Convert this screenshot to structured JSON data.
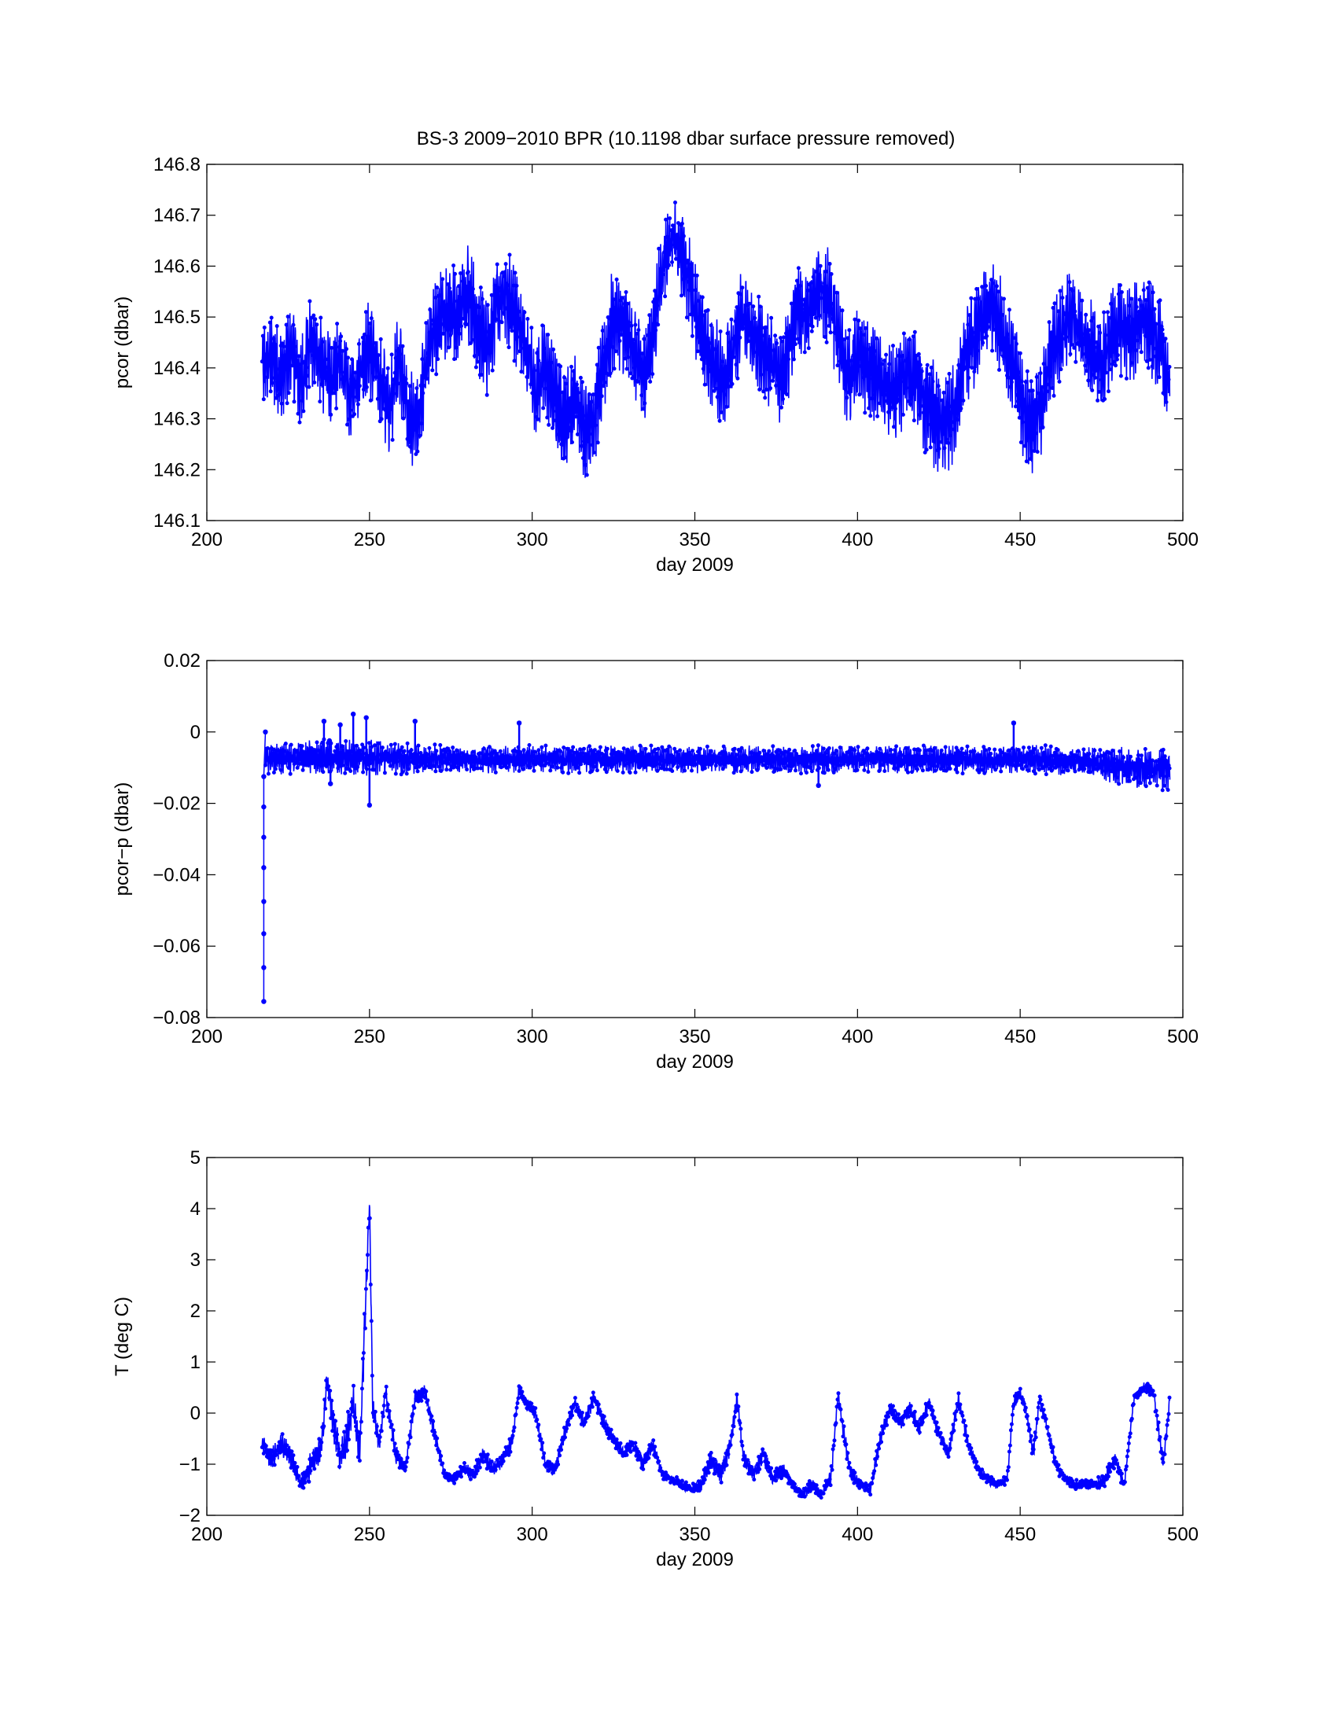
{
  "title": "BS-3 2009−2010 BPR (10.1198 dbar surface pressure removed)",
  "colors": {
    "series": "#0000ff",
    "axes": "#000000",
    "background": "#ffffff"
  },
  "chart_data": [
    {
      "type": "line",
      "xlabel": "day 2009",
      "ylabel": "pcor (dbar)",
      "xlim": [
        200,
        500
      ],
      "ylim": [
        146.1,
        146.8
      ],
      "xticks": [
        "200",
        "250",
        "300",
        "350",
        "400",
        "450",
        "500"
      ],
      "yticks": [
        "146.1",
        "146.2",
        "146.3",
        "146.4",
        "146.5",
        "146.6",
        "146.7",
        "146.8"
      ],
      "grid": false,
      "marker": "dot",
      "series": [
        {
          "x": [
            217,
            220,
            223,
            226,
            229,
            232,
            235,
            238,
            241,
            244,
            247,
            250,
            253,
            256,
            259,
            262,
            265,
            268,
            271,
            274,
            277,
            280,
            283,
            286,
            289,
            292,
            295,
            298,
            301,
            304,
            307,
            310,
            313,
            316,
            319,
            322,
            325,
            328,
            331,
            334,
            337,
            340,
            343,
            346,
            349,
            352,
            355,
            358,
            361,
            364,
            367,
            370,
            373,
            376,
            379,
            382,
            385,
            388,
            391,
            394,
            397,
            400,
            403,
            406,
            409,
            412,
            415,
            418,
            421,
            424,
            427,
            430,
            433,
            436,
            439,
            442,
            445,
            448,
            451,
            454,
            457,
            460,
            463,
            466,
            469,
            472,
            475,
            478,
            481,
            484,
            487,
            490,
            493,
            496
          ],
          "y": [
            146.4,
            146.42,
            146.38,
            146.44,
            146.36,
            146.46,
            146.4,
            146.38,
            146.42,
            146.34,
            146.4,
            146.44,
            146.38,
            146.32,
            146.42,
            146.3,
            146.28,
            146.44,
            146.48,
            146.52,
            146.5,
            146.56,
            146.48,
            146.44,
            146.52,
            146.54,
            146.5,
            146.44,
            146.36,
            146.4,
            146.34,
            146.3,
            146.34,
            146.28,
            146.3,
            146.4,
            146.5,
            146.48,
            146.44,
            146.38,
            146.46,
            146.6,
            146.66,
            146.62,
            146.56,
            146.46,
            146.42,
            146.38,
            146.4,
            146.5,
            146.48,
            146.44,
            146.42,
            146.38,
            146.44,
            146.52,
            146.5,
            146.56,
            146.54,
            146.46,
            146.38,
            146.42,
            146.4,
            146.38,
            146.36,
            146.34,
            146.4,
            146.38,
            146.32,
            146.3,
            146.28,
            146.32,
            146.42,
            146.46,
            146.5,
            146.52,
            146.46,
            146.4,
            146.32,
            146.28,
            146.34,
            146.44,
            146.48,
            146.5,
            146.46,
            146.44,
            146.4,
            146.46,
            146.48,
            146.46,
            146.5,
            146.48,
            146.44,
            146.36
          ],
          "band": [
            0.09,
            0.09,
            0.1,
            0.1,
            0.11,
            0.1,
            0.1,
            0.1,
            0.1,
            0.09,
            0.1,
            0.1,
            0.1,
            0.1,
            0.1,
            0.1,
            0.12,
            0.1,
            0.1,
            0.1,
            0.1,
            0.11,
            0.11,
            0.1,
            0.1,
            0.1,
            0.1,
            0.1,
            0.1,
            0.1,
            0.1,
            0.1,
            0.1,
            0.1,
            0.1,
            0.1,
            0.11,
            0.1,
            0.1,
            0.1,
            0.1,
            0.09,
            0.08,
            0.09,
            0.1,
            0.1,
            0.1,
            0.1,
            0.1,
            0.1,
            0.1,
            0.1,
            0.1,
            0.1,
            0.1,
            0.11,
            0.1,
            0.1,
            0.11,
            0.1,
            0.1,
            0.1,
            0.1,
            0.1,
            0.1,
            0.1,
            0.1,
            0.1,
            0.11,
            0.12,
            0.12,
            0.1,
            0.1,
            0.1,
            0.1,
            0.11,
            0.1,
            0.1,
            0.11,
            0.11,
            0.1,
            0.1,
            0.1,
            0.1,
            0.1,
            0.1,
            0.1,
            0.1,
            0.1,
            0.1,
            0.1,
            0.1,
            0.1,
            0.1
          ]
        }
      ]
    },
    {
      "type": "line",
      "xlabel": "day 2009",
      "ylabel": "pcor−p (dbar)",
      "xlim": [
        200,
        500
      ],
      "ylim": [
        -0.08,
        0.02
      ],
      "xticks": [
        "200",
        "250",
        "300",
        "350",
        "400",
        "450",
        "500"
      ],
      "yticks": [
        "−0.08",
        "−0.06",
        "−0.04",
        "−0.02",
        "0",
        "0.02"
      ],
      "grid": false,
      "marker": "dot",
      "initial_transient": {
        "x": [
          217.5,
          217.5,
          217.5,
          217.5,
          217.5,
          217.5,
          217.5,
          217.5,
          218
        ],
        "y": [
          -0.0755,
          -0.066,
          -0.0565,
          -0.0475,
          -0.038,
          -0.0295,
          -0.021,
          -0.0125,
          0.0
        ]
      },
      "series": [
        {
          "x": [
            218,
            230,
            245,
            260,
            275,
            290,
            305,
            320,
            335,
            350,
            365,
            380,
            395,
            410,
            425,
            440,
            455,
            470,
            475,
            480,
            485,
            490,
            496
          ],
          "y": [
            -0.0075,
            -0.0072,
            -0.007,
            -0.0074,
            -0.0076,
            -0.0076,
            -0.0076,
            -0.0077,
            -0.0077,
            -0.0077,
            -0.0077,
            -0.0077,
            -0.0077,
            -0.0077,
            -0.0077,
            -0.0078,
            -0.0078,
            -0.008,
            -0.009,
            -0.0095,
            -0.0098,
            -0.01,
            -0.0105
          ],
          "band": [
            0.0045,
            0.005,
            0.0055,
            0.0045,
            0.004,
            0.004,
            0.004,
            0.004,
            0.004,
            0.004,
            0.004,
            0.004,
            0.004,
            0.004,
            0.004,
            0.004,
            0.0042,
            0.0042,
            0.005,
            0.0055,
            0.006,
            0.006,
            0.0065
          ]
        }
      ],
      "outliers": {
        "x": [
          236,
          241,
          245,
          249,
          250,
          264,
          296,
          238,
          388,
          448
        ],
        "y": [
          0.003,
          0.002,
          0.005,
          0.004,
          -0.0205,
          0.003,
          0.0025,
          -0.0145,
          -0.015,
          0.0025
        ]
      }
    },
    {
      "type": "line",
      "xlabel": "day 2009",
      "ylabel": "T (deg C)",
      "xlim": [
        200,
        500
      ],
      "ylim": [
        -2,
        5
      ],
      "xticks": [
        "200",
        "250",
        "300",
        "350",
        "400",
        "450",
        "500"
      ],
      "yticks": [
        "−2",
        "−1",
        "0",
        "1",
        "2",
        "3",
        "4",
        "5"
      ],
      "grid": false,
      "marker": "dot",
      "series": [
        {
          "x": [
            217,
            220,
            223,
            226,
            229,
            232,
            235,
            237,
            239,
            241,
            243,
            245,
            247,
            249,
            250,
            251,
            253,
            255,
            258,
            261,
            264,
            267,
            270,
            273,
            276,
            279,
            282,
            285,
            288,
            291,
            294,
            296,
            298,
            301,
            304,
            307,
            310,
            313,
            316,
            319,
            322,
            325,
            328,
            331,
            334,
            337,
            340,
            343,
            346,
            349,
            352,
            355,
            358,
            361,
            363,
            365,
            368,
            371,
            374,
            377,
            380,
            383,
            386,
            389,
            392,
            394,
            396,
            398,
            401,
            404,
            407,
            410,
            413,
            416,
            419,
            422,
            425,
            428,
            431,
            434,
            437,
            440,
            443,
            446,
            448,
            450,
            452,
            454,
            456,
            458,
            461,
            464,
            467,
            470,
            473,
            476,
            479,
            482,
            485,
            488,
            491,
            494,
            496
          ],
          "y": [
            -0.6,
            -0.9,
            -0.6,
            -0.9,
            -1.4,
            -1.0,
            -0.7,
            0.6,
            -0.2,
            -0.9,
            -0.5,
            0.2,
            -0.8,
            2.5,
            4.1,
            0.1,
            -0.6,
            0.4,
            -0.8,
            -1.1,
            0.3,
            0.4,
            -0.4,
            -1.2,
            -1.3,
            -1.1,
            -1.2,
            -0.8,
            -1.1,
            -0.9,
            -0.5,
            0.5,
            0.2,
            0.0,
            -1.0,
            -1.1,
            -0.4,
            0.2,
            -0.2,
            0.3,
            -0.2,
            -0.5,
            -0.8,
            -0.6,
            -1.0,
            -0.6,
            -1.2,
            -1.3,
            -1.4,
            -1.5,
            -1.4,
            -0.9,
            -1.2,
            -0.6,
            0.3,
            -0.9,
            -1.2,
            -0.8,
            -1.3,
            -1.1,
            -1.4,
            -1.6,
            -1.4,
            -1.6,
            -1.2,
            0.4,
            -0.5,
            -1.2,
            -1.4,
            -1.5,
            -0.5,
            0.1,
            -0.2,
            0.1,
            -0.3,
            0.2,
            -0.4,
            -0.8,
            0.3,
            -0.6,
            -1.1,
            -1.3,
            -1.4,
            -1.3,
            0.2,
            0.4,
            0.0,
            -0.8,
            0.3,
            -0.2,
            -1.0,
            -1.3,
            -1.4,
            -1.4,
            -1.4,
            -1.3,
            -0.9,
            -1.4,
            0.3,
            0.5,
            0.4,
            -1.0,
            0.3
          ],
          "band": [
            0.2,
            0.25,
            0.25,
            0.25,
            0.15,
            0.3,
            0.3,
            0.35,
            0.4,
            0.4,
            0.4,
            0.4,
            0.4,
            0.5,
            0.2,
            0.3,
            0.2,
            0.2,
            0.2,
            0.15,
            0.2,
            0.15,
            0.2,
            0.1,
            0.1,
            0.15,
            0.15,
            0.2,
            0.15,
            0.15,
            0.2,
            0.1,
            0.15,
            0.15,
            0.15,
            0.15,
            0.15,
            0.15,
            0.15,
            0.15,
            0.15,
            0.15,
            0.15,
            0.15,
            0.15,
            0.15,
            0.1,
            0.1,
            0.1,
            0.1,
            0.15,
            0.2,
            0.2,
            0.2,
            0.15,
            0.2,
            0.15,
            0.2,
            0.15,
            0.15,
            0.1,
            0.1,
            0.15,
            0.1,
            0.2,
            0.1,
            0.2,
            0.15,
            0.1,
            0.1,
            0.2,
            0.15,
            0.15,
            0.15,
            0.15,
            0.15,
            0.15,
            0.15,
            0.15,
            0.15,
            0.1,
            0.1,
            0.1,
            0.1,
            0.15,
            0.1,
            0.15,
            0.2,
            0.15,
            0.15,
            0.15,
            0.1,
            0.1,
            0.1,
            0.1,
            0.15,
            0.2,
            0.1,
            0.1,
            0.1,
            0.15,
            0.15,
            0.15
          ]
        }
      ]
    }
  ]
}
